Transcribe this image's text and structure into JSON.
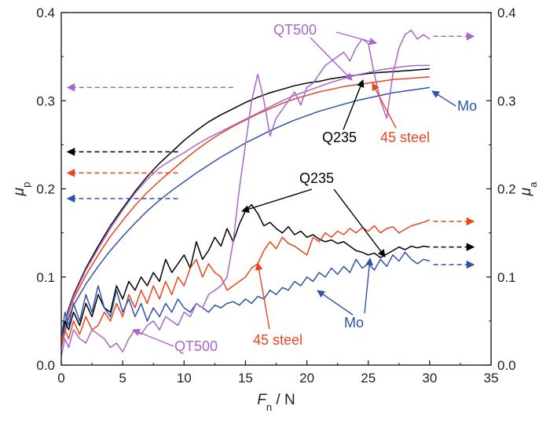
{
  "chart_data": {
    "type": "line",
    "x_axis": {
      "label_main": "F",
      "label_sub": "n",
      "label_unit": " / N",
      "range": [
        0,
        35
      ],
      "ticks": [
        0,
        5,
        10,
        15,
        20,
        25,
        30,
        35
      ],
      "tick_labels": [
        "0",
        "5",
        "10",
        "15",
        "20",
        "25",
        "30",
        "35"
      ]
    },
    "y_axis_left": {
      "label_main": "μ",
      "label_sub": "p",
      "range": [
        0,
        0.4
      ],
      "ticks": [
        0,
        0.1,
        0.2,
        0.3,
        0.4
      ],
      "tick_labels": [
        "0.0",
        "0.1",
        "0.2",
        "0.3",
        "0.4"
      ]
    },
    "y_axis_right": {
      "label_main": "μ",
      "label_sub": "a",
      "range": [
        0,
        0.4
      ],
      "ticks": [
        0,
        0.1,
        0.2,
        0.3,
        0.4
      ],
      "tick_labels": [
        "0.0",
        "0.1",
        "0.2",
        "0.3",
        "0.4"
      ]
    },
    "grid": false,
    "colors": {
      "Q235": "#000000",
      "45 steel": "#e8471e",
      "Mo": "#2f53a8",
      "QT500": "#a866c9"
    },
    "series": [
      {
        "name": "Q235",
        "kind": "mu_p",
        "x": [
          0,
          0.5,
          1,
          2,
          3,
          4,
          5,
          6,
          7,
          8,
          9,
          10,
          11,
          12,
          13,
          14,
          15,
          16,
          17,
          18,
          19,
          20,
          21,
          22,
          23,
          24,
          25,
          26,
          27,
          28,
          29,
          30
        ],
        "y": [
          0.02,
          0.06,
          0.08,
          0.11,
          0.135,
          0.158,
          0.178,
          0.197,
          0.214,
          0.229,
          0.242,
          0.255,
          0.266,
          0.276,
          0.284,
          0.291,
          0.298,
          0.304,
          0.309,
          0.313,
          0.317,
          0.32,
          0.322,
          0.325,
          0.327,
          0.329,
          0.331,
          0.332,
          0.333,
          0.334,
          0.335,
          0.336
        ]
      },
      {
        "name": "45 steel",
        "kind": "mu_p",
        "x": [
          0,
          0.5,
          1,
          2,
          3,
          4,
          5,
          6,
          7,
          8,
          9,
          10,
          11,
          12,
          13,
          14,
          15,
          16,
          17,
          18,
          19,
          20,
          21,
          22,
          23,
          24,
          25,
          26,
          27,
          28,
          29,
          30
        ],
        "y": [
          0.02,
          0.055,
          0.075,
          0.102,
          0.125,
          0.146,
          0.164,
          0.181,
          0.196,
          0.209,
          0.221,
          0.233,
          0.244,
          0.254,
          0.263,
          0.271,
          0.278,
          0.285,
          0.291,
          0.297,
          0.302,
          0.306,
          0.31,
          0.313,
          0.316,
          0.318,
          0.32,
          0.322,
          0.324,
          0.325,
          0.326,
          0.327
        ]
      },
      {
        "name": "Mo",
        "kind": "mu_p",
        "x": [
          0,
          0.5,
          1,
          2,
          3,
          4,
          5,
          6,
          7,
          8,
          9,
          10,
          11,
          12,
          13,
          14,
          15,
          16,
          17,
          18,
          19,
          20,
          21,
          22,
          23,
          24,
          25,
          26,
          27,
          28,
          29,
          30
        ],
        "y": [
          0.02,
          0.05,
          0.068,
          0.092,
          0.112,
          0.13,
          0.146,
          0.161,
          0.175,
          0.187,
          0.198,
          0.208,
          0.218,
          0.227,
          0.236,
          0.244,
          0.252,
          0.259,
          0.266,
          0.272,
          0.278,
          0.283,
          0.288,
          0.292,
          0.296,
          0.3,
          0.303,
          0.306,
          0.309,
          0.311,
          0.313,
          0.315
        ]
      },
      {
        "name": "QT500",
        "kind": "mu_p",
        "x": [
          0,
          0.5,
          1,
          2,
          3,
          4,
          5,
          6,
          7,
          8,
          9,
          10,
          11,
          12,
          13,
          14,
          15,
          16,
          17,
          18,
          19,
          20,
          21,
          22,
          23,
          24,
          25,
          26,
          27,
          28,
          29,
          30
        ],
        "y": [
          0.02,
          0.058,
          0.078,
          0.108,
          0.132,
          0.155,
          0.176,
          0.195,
          0.211,
          0.224,
          0.233,
          0.241,
          0.25,
          0.258,
          0.265,
          0.272,
          0.279,
          0.286,
          0.293,
          0.3,
          0.306,
          0.311,
          0.316,
          0.321,
          0.325,
          0.329,
          0.332,
          0.335,
          0.337,
          0.339,
          0.34,
          0.34
        ]
      },
      {
        "name": "Q235",
        "kind": "mu_a",
        "x": [
          0,
          0.3,
          0.6,
          1,
          1.5,
          2,
          2.5,
          3,
          3.5,
          4,
          4.5,
          5,
          5.5,
          6,
          6.5,
          7,
          7.5,
          8,
          8.5,
          9,
          9.5,
          10,
          10.5,
          11,
          11.5,
          12,
          12.5,
          13,
          13.5,
          14,
          14.5,
          15,
          15.5,
          16,
          16.5,
          17,
          17.5,
          18,
          18.5,
          19,
          19.5,
          20,
          20.5,
          21,
          21.5,
          22,
          22.5,
          23,
          23.5,
          24,
          24.5,
          25,
          25.5,
          26,
          26.5,
          27,
          27.5,
          28,
          28.5,
          29,
          29.5,
          30
        ],
        "y": [
          0.03,
          0.05,
          0.04,
          0.06,
          0.045,
          0.07,
          0.055,
          0.08,
          0.065,
          0.06,
          0.09,
          0.075,
          0.095,
          0.085,
          0.1,
          0.09,
          0.105,
          0.095,
          0.12,
          0.105,
          0.115,
          0.125,
          0.11,
          0.14,
          0.12,
          0.13,
          0.145,
          0.135,
          0.155,
          0.14,
          0.16,
          0.175,
          0.182,
          0.172,
          0.158,
          0.162,
          0.155,
          0.15,
          0.157,
          0.148,
          0.152,
          0.145,
          0.148,
          0.143,
          0.14,
          0.142,
          0.138,
          0.14,
          0.135,
          0.13,
          0.128,
          0.125,
          0.127,
          0.122,
          0.126,
          0.13,
          0.134,
          0.131,
          0.135,
          0.133,
          0.135,
          0.134
        ]
      },
      {
        "name": "45 steel",
        "kind": "mu_a",
        "x": [
          0,
          0.3,
          0.6,
          1,
          1.5,
          2,
          2.5,
          3,
          3.5,
          4,
          4.5,
          5,
          5.5,
          6,
          6.5,
          7,
          7.5,
          8,
          8.5,
          9,
          9.5,
          10,
          10.5,
          11,
          11.5,
          12,
          12.5,
          13,
          13.5,
          14,
          14.5,
          15,
          15.5,
          16,
          16.5,
          17,
          17.5,
          18,
          18.5,
          19,
          19.5,
          20,
          20.5,
          21,
          21.5,
          22,
          22.5,
          23,
          23.5,
          24,
          24.5,
          25,
          25.5,
          26,
          26.5,
          27,
          27.5,
          28,
          28.5,
          29,
          29.5,
          30
        ],
        "y": [
          0.02,
          0.04,
          0.03,
          0.05,
          0.035,
          0.055,
          0.04,
          0.045,
          0.06,
          0.05,
          0.07,
          0.055,
          0.08,
          0.065,
          0.085,
          0.07,
          0.09,
          0.075,
          0.095,
          0.08,
          0.1,
          0.09,
          0.11,
          0.12,
          0.1,
          0.115,
          0.105,
          0.1,
          0.085,
          0.09,
          0.095,
          0.1,
          0.11,
          0.115,
          0.13,
          0.14,
          0.132,
          0.145,
          0.138,
          0.135,
          0.13,
          0.125,
          0.145,
          0.14,
          0.15,
          0.145,
          0.152,
          0.148,
          0.155,
          0.15,
          0.156,
          0.152,
          0.158,
          0.15,
          0.155,
          0.157,
          0.15,
          0.154,
          0.158,
          0.16,
          0.162,
          0.165
        ]
      },
      {
        "name": "Mo",
        "kind": "mu_a",
        "x": [
          0,
          0.3,
          0.6,
          1,
          1.5,
          2,
          2.5,
          3,
          3.5,
          4,
          4.5,
          5,
          5.5,
          6,
          6.5,
          7,
          7.5,
          8,
          8.5,
          9,
          9.5,
          10,
          10.5,
          11,
          11.5,
          12,
          12.5,
          13,
          13.5,
          14,
          14.5,
          15,
          15.5,
          16,
          16.5,
          17,
          17.5,
          18,
          18.5,
          19,
          19.5,
          20,
          20.5,
          21,
          21.5,
          22,
          22.5,
          23,
          23.5,
          24,
          24.5,
          25,
          25.5,
          26,
          26.5,
          27,
          27.5,
          28,
          28.5,
          29,
          29.5,
          30
        ],
        "y": [
          0.03,
          0.06,
          0.045,
          0.07,
          0.05,
          0.08,
          0.06,
          0.09,
          0.065,
          0.055,
          0.085,
          0.06,
          0.075,
          0.055,
          0.07,
          0.05,
          0.065,
          0.055,
          0.07,
          0.06,
          0.075,
          0.065,
          0.06,
          0.07,
          0.065,
          0.06,
          0.068,
          0.065,
          0.07,
          0.072,
          0.068,
          0.075,
          0.07,
          0.078,
          0.075,
          0.085,
          0.08,
          0.088,
          0.085,
          0.095,
          0.09,
          0.1,
          0.095,
          0.105,
          0.1,
          0.11,
          0.103,
          0.112,
          0.105,
          0.12,
          0.11,
          0.115,
          0.108,
          0.12,
          0.112,
          0.125,
          0.118,
          0.128,
          0.12,
          0.115,
          0.12,
          0.118
        ]
      },
      {
        "name": "QT500",
        "kind": "mu_a",
        "x": [
          0,
          0.3,
          0.6,
          1,
          1.5,
          2,
          2.5,
          3,
          3.5,
          4,
          4.5,
          5,
          5.5,
          6,
          6.5,
          7,
          7.5,
          8,
          8.5,
          9,
          9.5,
          10,
          10.5,
          11,
          11.5,
          12,
          12.5,
          13,
          13.5,
          14,
          14.5,
          15,
          15.5,
          16,
          16.5,
          17,
          17.5,
          18,
          18.5,
          19,
          19.5,
          20,
          20.5,
          21,
          21.5,
          22,
          22.5,
          23,
          23.5,
          24,
          24.5,
          25,
          25.5,
          26,
          26.5,
          27,
          27.5,
          28,
          28.5,
          29,
          29.5,
          30
        ],
        "y": [
          0.01,
          0.03,
          0.02,
          0.04,
          0.03,
          0.025,
          0.04,
          0.035,
          0.03,
          0.02,
          0.025,
          0.015,
          0.03,
          0.04,
          0.035,
          0.045,
          0.05,
          0.04,
          0.055,
          0.05,
          0.045,
          0.06,
          0.055,
          0.07,
          0.065,
          0.08,
          0.085,
          0.09,
          0.1,
          0.14,
          0.2,
          0.25,
          0.3,
          0.33,
          0.3,
          0.26,
          0.28,
          0.29,
          0.3,
          0.31,
          0.295,
          0.315,
          0.32,
          0.33,
          0.34,
          0.345,
          0.35,
          0.355,
          0.345,
          0.36,
          0.37,
          0.365,
          0.33,
          0.3,
          0.28,
          0.33,
          0.36,
          0.375,
          0.38,
          0.37,
          0.375,
          0.37
        ]
      }
    ],
    "mean_lines": [
      {
        "series": "QT500",
        "value": 0.315,
        "side": "left"
      },
      {
        "series": "Q235",
        "value": 0.242,
        "side": "left"
      },
      {
        "series": "45 steel",
        "value": 0.218,
        "side": "left"
      },
      {
        "series": "Mo",
        "value": 0.189,
        "side": "left"
      },
      {
        "series": "QT500",
        "value": 0.373,
        "side": "right"
      },
      {
        "series": "45 steel",
        "value": 0.163,
        "side": "right"
      },
      {
        "series": "Q235",
        "value": 0.134,
        "side": "right"
      },
      {
        "series": "Mo",
        "value": 0.114,
        "side": "right"
      }
    ],
    "annotations": [
      {
        "text": "QT500",
        "color": "#a866c9"
      },
      {
        "text": "Q235",
        "color": "#000000"
      },
      {
        "text": "45 steel",
        "color": "#e8471e"
      },
      {
        "text": "Mo",
        "color": "#2f53a8"
      },
      {
        "text": "Q235",
        "color": "#000000"
      },
      {
        "text": "45 steel",
        "color": "#e8471e"
      },
      {
        "text": "Mo",
        "color": "#2f53a8"
      },
      {
        "text": "QT500",
        "color": "#a866c9"
      }
    ]
  }
}
